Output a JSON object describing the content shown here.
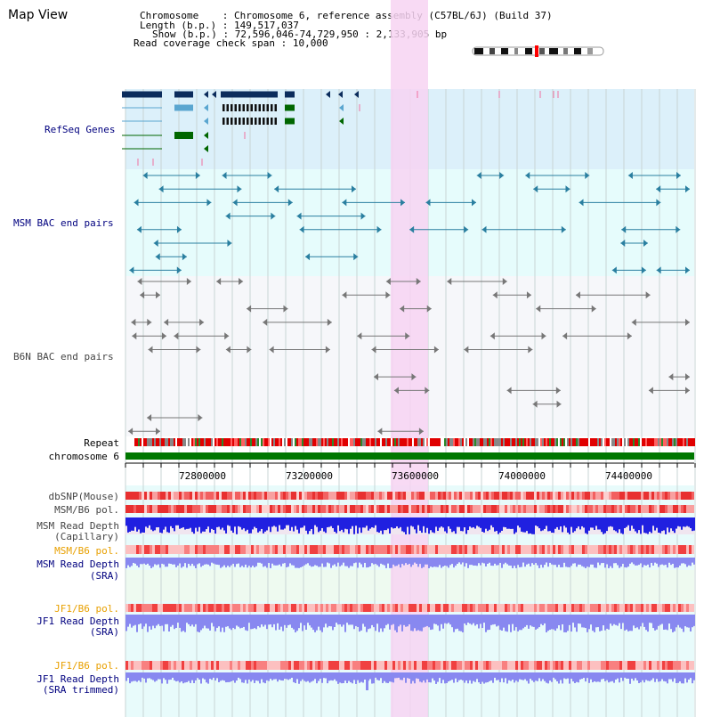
{
  "title": "Map View",
  "info": {
    "chromosome_label": "Chromosome",
    "chromosome_value": "Chromosome 6, reference assembly (C57BL/6J) (Build 37)",
    "length_label": "Length (b.p.)",
    "length_value": "149,517,037",
    "show_label": "Show (b.p.)",
    "show_value": "72,596,046-74,729,950 : 2,133,905 bp",
    "coverage_label": "Read coverage check span",
    "coverage_value": "10,000"
  },
  "tracks": {
    "refseq": "RefSeq Genes",
    "msm_bac": "MSM BAC end pairs",
    "b6n_bac": "B6N BAC end pairs",
    "repeat": "Repeat",
    "chromosome": "chromosome 6",
    "dbsnp": "dbSNP(Mouse)",
    "msm_b6_pol_1": "MSM/B6 pol.",
    "msm_read_depth_cap_1": "MSM Read Depth",
    "msm_read_depth_cap_2": "(Capillary)",
    "msm_b6_pol_2": "MSM/B6 pol.",
    "msm_read_depth_sra_1": "MSM Read Depth",
    "msm_read_depth_sra_2": "(SRA)",
    "jf1_b6_pol_1": "JF1/B6 pol.",
    "jf1_read_depth_sra_1": "JF1 Read Depth",
    "jf1_read_depth_sra_2": "(SRA)",
    "jf1_b6_pol_2": "JF1/B6 pol.",
    "jf1_read_depth_trim_1": "JF1 Read Depth",
    "jf1_read_depth_trim_2": "(SRA trimmed)"
  },
  "axis": {
    "ticks": [
      "72800000",
      "73200000",
      "73600000",
      "74000000",
      "74400000"
    ]
  },
  "colors": {
    "highlight": "#f7d3f2",
    "refseq_bg": "#dcf0fa",
    "bac_bg": "#e6fcfc",
    "b6n_bg": "#f6f7fa",
    "navy_label": "#00007f",
    "orange_label": "#e8a000",
    "gray_label": "#444444",
    "chromosome_bar": "#007700",
    "depth_blue": "#2020e0",
    "depth_light": "#8888f0",
    "refseq_navy": "#0c2c5c",
    "refseq_teal": "#5aa6d0",
    "refseq_green": "#006600",
    "msm_feature": "#2a7fa0",
    "b6n_feature": "#777777"
  }
}
